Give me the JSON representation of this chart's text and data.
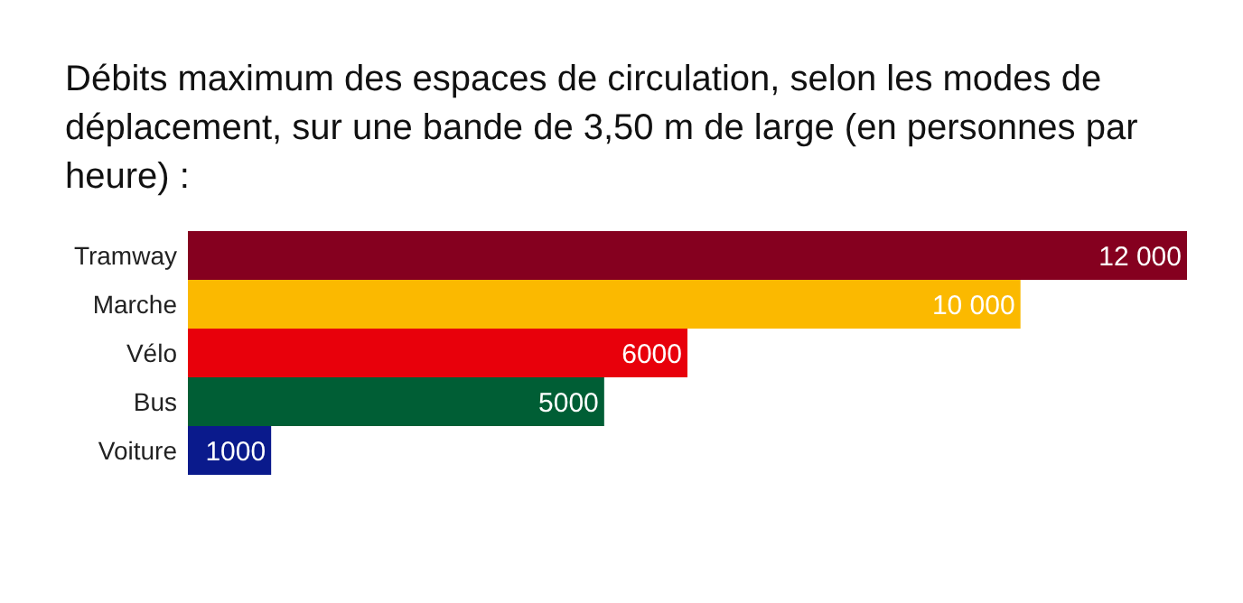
{
  "chart_data": {
    "type": "bar",
    "orientation": "horizontal",
    "title": "Débits maximum des espaces de circulation, selon les modes de déplacement, sur une bande de 3,50 m de large (en personnes par heure) :",
    "categories": [
      "Tramway",
      "Marche",
      "Vélo",
      "Bus",
      "Voiture"
    ],
    "values": [
      12000,
      10000,
      6000,
      5000,
      1000
    ],
    "colors": [
      "#85001f",
      "#fbb900",
      "#e8000b",
      "#005e35",
      "#0a1a8c"
    ],
    "value_labels": [
      "12 000",
      "10 000",
      "6000",
      "5000",
      "1000"
    ]
  }
}
